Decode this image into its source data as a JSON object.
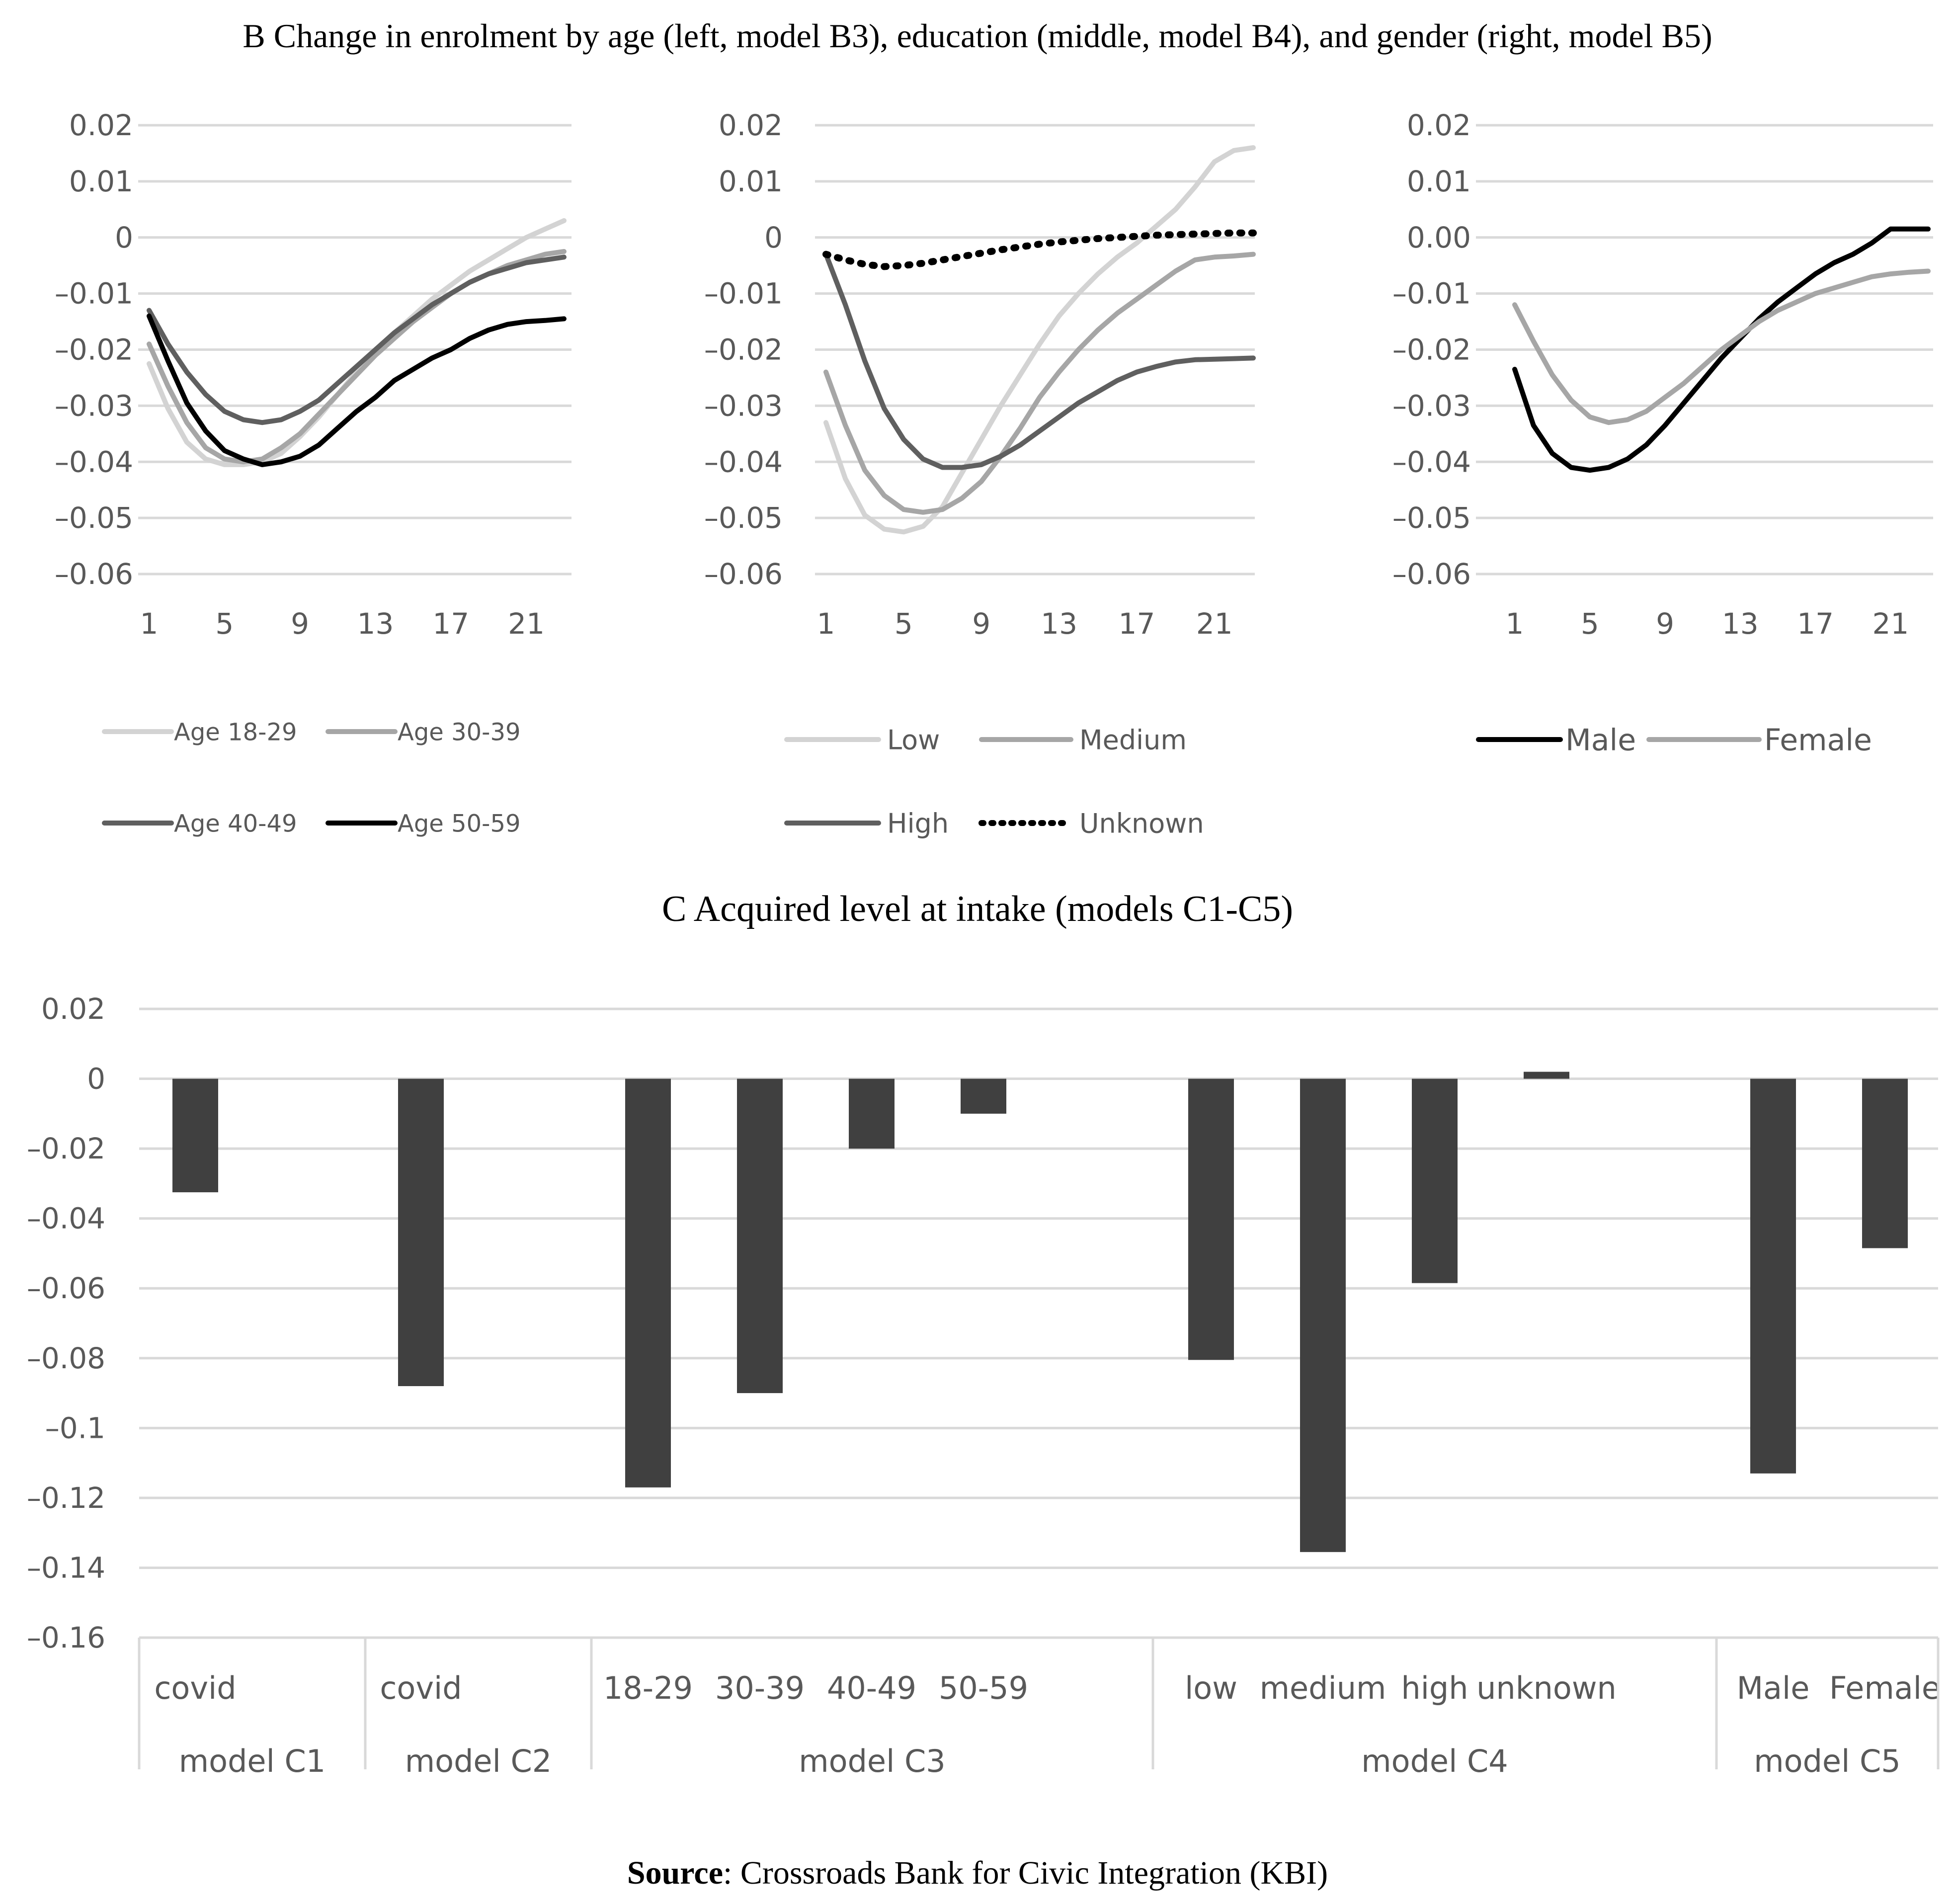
{
  "figure": {
    "panel_b_title": "B Change in enrolment by age (left, model B3), education (middle, model B4), and gender (right, model B5)",
    "panel_c_title": "C Acquired level at intake (models C1-C5)",
    "source_label": "Source",
    "source_text": ": Crossroads Bank for Civic Integration (KBI)"
  },
  "colors": {
    "light": "#d3d3d3",
    "medium": "#a6a6a6",
    "dark": "#5f5f5f",
    "black": "#000000",
    "bar": "#404040",
    "grid": "#d9d9d9",
    "text": "#595959"
  },
  "chart_data": [
    {
      "type": "line",
      "title": "Age (model B3)",
      "x": [
        1,
        2,
        3,
        4,
        5,
        6,
        7,
        8,
        9,
        10,
        11,
        12,
        13,
        14,
        15,
        16,
        17,
        18,
        19,
        20,
        21,
        22,
        23
      ],
      "xticks": [
        "1",
        "5",
        "9",
        "13",
        "17",
        "21"
      ],
      "yticks": [
        "0.02",
        "0.01",
        "0",
        "–0.01",
        "–0.02",
        "–0.03",
        "–0.04",
        "–0.05",
        "–0.06"
      ],
      "ylim": [
        -0.06,
        0.02
      ],
      "legend_position": "bottom",
      "series": [
        {
          "name": "Age 18-29",
          "color": "#d3d3d3",
          "dash": false,
          "values": [
            -0.0225,
            -0.0305,
            -0.0365,
            -0.0395,
            -0.0405,
            -0.0405,
            -0.04,
            -0.0385,
            -0.0355,
            -0.032,
            -0.028,
            -0.024,
            -0.0205,
            -0.017,
            -0.014,
            -0.011,
            -0.0085,
            -0.006,
            -0.004,
            -0.002,
            0.0,
            0.0015,
            0.003
          ]
        },
        {
          "name": "Age 30-39",
          "color": "#a6a6a6",
          "dash": false,
          "values": [
            -0.019,
            -0.0265,
            -0.033,
            -0.0375,
            -0.0395,
            -0.04,
            -0.0395,
            -0.0375,
            -0.035,
            -0.0315,
            -0.028,
            -0.0245,
            -0.021,
            -0.018,
            -0.015,
            -0.0125,
            -0.01,
            -0.008,
            -0.0065,
            -0.005,
            -0.004,
            -0.003,
            -0.0025
          ]
        },
        {
          "name": "Age 40-49",
          "color": "#5f5f5f",
          "dash": false,
          "values": [
            -0.013,
            -0.019,
            -0.024,
            -0.028,
            -0.031,
            -0.0325,
            -0.033,
            -0.0325,
            -0.031,
            -0.029,
            -0.026,
            -0.023,
            -0.02,
            -0.017,
            -0.0145,
            -0.012,
            -0.01,
            -0.008,
            -0.0065,
            -0.0055,
            -0.0045,
            -0.004,
            -0.0035
          ]
        },
        {
          "name": "Age 50-59",
          "color": "#000000",
          "dash": false,
          "values": [
            -0.014,
            -0.022,
            -0.0295,
            -0.0345,
            -0.038,
            -0.0395,
            -0.0405,
            -0.04,
            -0.039,
            -0.037,
            -0.034,
            -0.031,
            -0.0285,
            -0.0255,
            -0.0235,
            -0.0215,
            -0.02,
            -0.018,
            -0.0165,
            -0.0155,
            -0.015,
            -0.0148,
            -0.0145
          ]
        }
      ]
    },
    {
      "type": "line",
      "title": "Education (model B4)",
      "x": [
        1,
        2,
        3,
        4,
        5,
        6,
        7,
        8,
        9,
        10,
        11,
        12,
        13,
        14,
        15,
        16,
        17,
        18,
        19,
        20,
        21,
        22,
        23
      ],
      "xticks": [
        "1",
        "5",
        "9",
        "13",
        "17",
        "21"
      ],
      "yticks": [
        "0.02",
        "0.01",
        "0",
        "–0.01",
        "–0.02",
        "–0.03",
        "–0.04",
        "–0.05",
        "–0.06"
      ],
      "ylim": [
        -0.06,
        0.02
      ],
      "legend_position": "bottom",
      "series": [
        {
          "name": "Low",
          "color": "#d3d3d3",
          "dash": false,
          "values": [
            -0.033,
            -0.043,
            -0.0495,
            -0.052,
            -0.0525,
            -0.0515,
            -0.048,
            -0.042,
            -0.036,
            -0.03,
            -0.0245,
            -0.019,
            -0.014,
            -0.01,
            -0.0065,
            -0.0035,
            -0.001,
            0.002,
            0.005,
            0.009,
            0.0135,
            0.0155,
            0.016
          ]
        },
        {
          "name": "Medium",
          "color": "#a6a6a6",
          "dash": false,
          "values": [
            -0.024,
            -0.0335,
            -0.0415,
            -0.046,
            -0.0485,
            -0.049,
            -0.0485,
            -0.0465,
            -0.0435,
            -0.039,
            -0.034,
            -0.0285,
            -0.024,
            -0.02,
            -0.0165,
            -0.0135,
            -0.011,
            -0.0085,
            -0.006,
            -0.004,
            -0.0035,
            -0.0033,
            -0.003
          ]
        },
        {
          "name": "High",
          "color": "#5f5f5f",
          "dash": false,
          "values": [
            -0.003,
            -0.012,
            -0.022,
            -0.0305,
            -0.036,
            -0.0395,
            -0.041,
            -0.041,
            -0.0405,
            -0.039,
            -0.037,
            -0.0345,
            -0.032,
            -0.0295,
            -0.0275,
            -0.0255,
            -0.024,
            -0.023,
            -0.0222,
            -0.0218,
            -0.0217,
            -0.0216,
            -0.0215
          ]
        },
        {
          "name": "Unknown",
          "color": "#000000",
          "dash": true,
          "values": [
            -0.003,
            -0.004,
            -0.0048,
            -0.0052,
            -0.005,
            -0.0046,
            -0.004,
            -0.0034,
            -0.0028,
            -0.0022,
            -0.0017,
            -0.0012,
            -0.0008,
            -0.0005,
            -0.0002,
            0.0,
            0.0002,
            0.0004,
            0.0005,
            0.0006,
            0.0007,
            0.0008,
            0.0008
          ]
        }
      ]
    },
    {
      "type": "line",
      "title": "Gender (model B5)",
      "x": [
        1,
        2,
        3,
        4,
        5,
        6,
        7,
        8,
        9,
        10,
        11,
        12,
        13,
        14,
        15,
        16,
        17,
        18,
        19,
        20,
        21,
        22,
        23
      ],
      "xticks": [
        "1",
        "5",
        "9",
        "13",
        "17",
        "21"
      ],
      "yticks": [
        "0.02",
        "0.01",
        "0.00",
        "–0.01",
        "–0.02",
        "–0.03",
        "–0.04",
        "–0.05",
        "–0.06"
      ],
      "ylim": [
        -0.06,
        0.02
      ],
      "legend_position": "bottom",
      "series": [
        {
          "name": "Male",
          "color": "#000000",
          "dash": false,
          "values": [
            -0.0235,
            -0.0335,
            -0.0385,
            -0.041,
            -0.0415,
            -0.041,
            -0.0395,
            -0.037,
            -0.0335,
            -0.0295,
            -0.0255,
            -0.0215,
            -0.018,
            -0.0145,
            -0.0115,
            -0.009,
            -0.0065,
            -0.0045,
            -0.003,
            -0.001,
            0.0015,
            0.0015,
            0.0015
          ]
        },
        {
          "name": "Female",
          "color": "#a6a6a6",
          "dash": false,
          "values": [
            -0.012,
            -0.0185,
            -0.0245,
            -0.029,
            -0.032,
            -0.033,
            -0.0325,
            -0.031,
            -0.0285,
            -0.026,
            -0.023,
            -0.02,
            -0.0175,
            -0.015,
            -0.013,
            -0.0115,
            -0.01,
            -0.009,
            -0.008,
            -0.007,
            -0.0065,
            -0.0062,
            -0.006
          ]
        }
      ]
    },
    {
      "type": "bar",
      "title": "C Acquired level at intake (models C1-C5)",
      "ylim": [
        -0.16,
        0.02
      ],
      "yticks": [
        "0.02",
        "0",
        "–0.02",
        "–0.04",
        "–0.06",
        "–0.08",
        "–0.1",
        "–0.12",
        "–0.14",
        "–0.16"
      ],
      "groups": [
        {
          "name": "model C1",
          "categories": [
            "covid"
          ],
          "values": [
            -0.0325
          ]
        },
        {
          "name": "model C2",
          "categories": [
            "covid"
          ],
          "values": [
            -0.088
          ]
        },
        {
          "name": "model C3",
          "categories": [
            "18-29",
            "30-39",
            "40-49",
            "50-59"
          ],
          "values": [
            -0.117,
            -0.09,
            -0.02,
            -0.01
          ]
        },
        {
          "name": "model C4",
          "categories": [
            "low",
            "medium",
            "high",
            "unknown"
          ],
          "values": [
            -0.0805,
            -0.1355,
            -0.0585,
            0.002
          ]
        },
        {
          "name": "model C5",
          "categories": [
            "Male",
            "Female"
          ],
          "values": [
            -0.113,
            -0.0485
          ]
        }
      ]
    }
  ]
}
